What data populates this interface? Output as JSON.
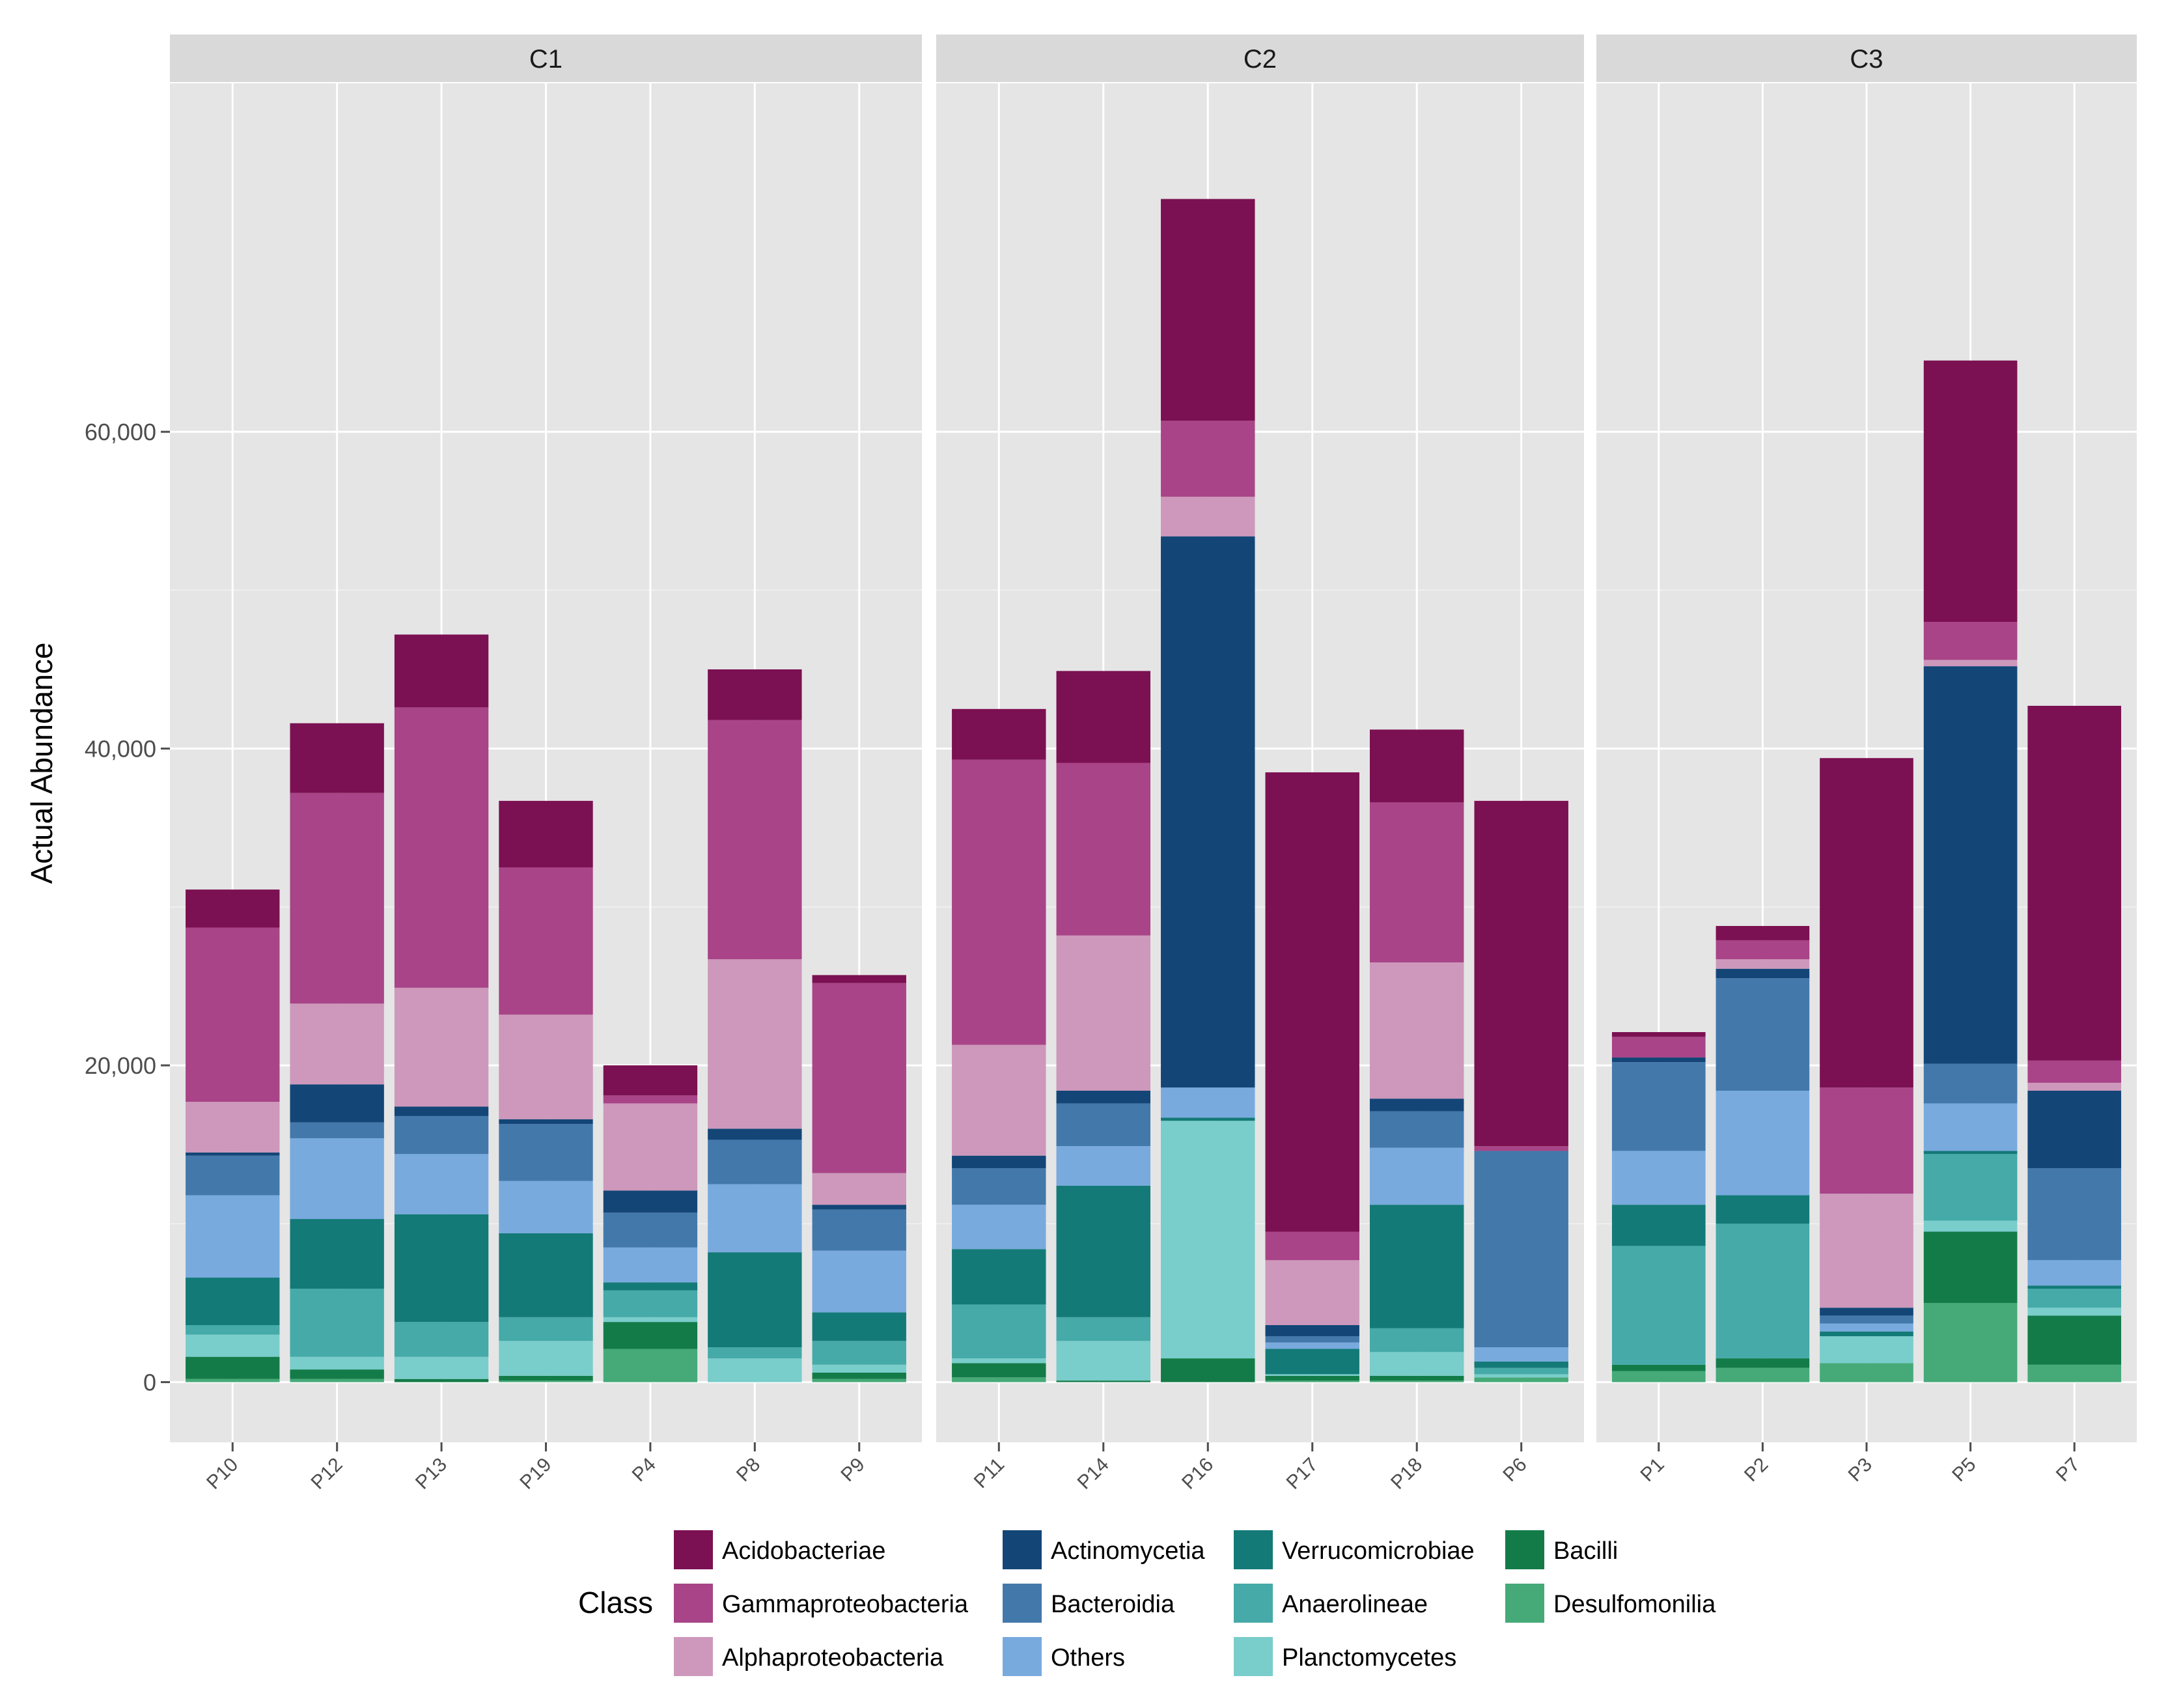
{
  "chart_data": {
    "type": "stacked-bar-faceted",
    "ylabel": "Actual Abundance",
    "xlabel": "",
    "ylim": [
      -3800,
      82000
    ],
    "yticks": [
      0,
      20000,
      40000,
      60000
    ],
    "ytick_labels": [
      "0",
      "20,000",
      "40,000",
      "60,000"
    ],
    "legend_title": "Class",
    "classes": [
      "Acidobacteriae",
      "Gammaproteobacteria",
      "Alphaproteobacteria",
      "Actinomycetia",
      "Bacteroidia",
      "Others",
      "Verrucomicrobiae",
      "Anaerolineae",
      "Planctomycetes",
      "Bacilli",
      "Desulfomonilia"
    ],
    "class_colors": [
      "#7b1052",
      "#a84487",
      "#cd98bb",
      "#134677",
      "#4378ab",
      "#78aade",
      "#137a77",
      "#45aaa8",
      "#79cdcb",
      "#137b48",
      "#45aa78"
    ],
    "stack_order_bottom_to_top": [
      "Desulfomonilia",
      "Bacilli",
      "Planctomycetes",
      "Anaerolineae",
      "Verrucomicrobiae",
      "Others",
      "Bacteroidia",
      "Actinomycetia",
      "Alphaproteobacteria",
      "Gammaproteobacteria",
      "Acidobacteriae"
    ],
    "facets": [
      {
        "name": "C1",
        "samples": [
          {
            "name": "P10",
            "values": {
              "Desulfomonilia": 200,
              "Bacilli": 1400,
              "Planctomycetes": 1400,
              "Anaerolineae": 600,
              "Verrucomicrobiae": 3000,
              "Others": 5200,
              "Bacteroidia": 2500,
              "Actinomycetia": 200,
              "Alphaproteobacteria": 3200,
              "Gammaproteobacteria": 11000,
              "Acidobacteriae": 2400
            }
          },
          {
            "name": "P12",
            "values": {
              "Desulfomonilia": 200,
              "Bacilli": 600,
              "Planctomycetes": 800,
              "Anaerolineae": 4300,
              "Verrucomicrobiae": 4400,
              "Others": 5100,
              "Bacteroidia": 1000,
              "Actinomycetia": 2400,
              "Alphaproteobacteria": 5100,
              "Gammaproteobacteria": 13300,
              "Acidobacteriae": 4400
            }
          },
          {
            "name": "P13",
            "values": {
              "Desulfomonilia": 0,
              "Bacilli": 200,
              "Planctomycetes": 1400,
              "Anaerolineae": 2200,
              "Verrucomicrobiae": 6800,
              "Others": 3800,
              "Bacteroidia": 2400,
              "Actinomycetia": 600,
              "Alphaproteobacteria": 7500,
              "Gammaproteobacteria": 17700,
              "Acidobacteriae": 4600
            }
          },
          {
            "name": "P19",
            "values": {
              "Desulfomonilia": 100,
              "Bacilli": 300,
              "Planctomycetes": 2200,
              "Anaerolineae": 1500,
              "Verrucomicrobiae": 5300,
              "Others": 3300,
              "Bacteroidia": 3600,
              "Actinomycetia": 300,
              "Alphaproteobacteria": 6600,
              "Gammaproteobacteria": 9300,
              "Acidobacteriae": 4200
            }
          },
          {
            "name": "P4",
            "values": {
              "Desulfomonilia": 2100,
              "Bacilli": 1700,
              "Planctomycetes": 300,
              "Anaerolineae": 1700,
              "Verrucomicrobiae": 500,
              "Others": 2200,
              "Bacteroidia": 2200,
              "Actinomycetia": 1400,
              "Alphaproteobacteria": 5500,
              "Gammaproteobacteria": 500,
              "Acidobacteriae": 1900
            }
          },
          {
            "name": "P8",
            "values": {
              "Desulfomonilia": 0,
              "Bacilli": 0,
              "Planctomycetes": 1500,
              "Anaerolineae": 700,
              "Verrucomicrobiae": 6000,
              "Others": 4300,
              "Bacteroidia": 2800,
              "Actinomycetia": 700,
              "Alphaproteobacteria": 10700,
              "Gammaproteobacteria": 15100,
              "Acidobacteriae": 3200
            }
          },
          {
            "name": "P9",
            "values": {
              "Desulfomonilia": 200,
              "Bacilli": 400,
              "Planctomycetes": 500,
              "Anaerolineae": 1500,
              "Verrucomicrobiae": 1800,
              "Others": 3900,
              "Bacteroidia": 2600,
              "Actinomycetia": 300,
              "Alphaproteobacteria": 2000,
              "Gammaproteobacteria": 12000,
              "Acidobacteriae": 500
            }
          }
        ]
      },
      {
        "name": "C2",
        "samples": [
          {
            "name": "P11",
            "values": {
              "Desulfomonilia": 300,
              "Bacilli": 900,
              "Planctomycetes": 300,
              "Anaerolineae": 3400,
              "Verrucomicrobiae": 3500,
              "Others": 2800,
              "Bacteroidia": 2300,
              "Actinomycetia": 800,
              "Alphaproteobacteria": 7000,
              "Gammaproteobacteria": 18000,
              "Acidobacteriae": 3200
            }
          },
          {
            "name": "P14",
            "values": {
              "Desulfomonilia": 0,
              "Bacilli": 100,
              "Planctomycetes": 2500,
              "Anaerolineae": 1500,
              "Verrucomicrobiae": 8300,
              "Others": 2500,
              "Bacteroidia": 2700,
              "Actinomycetia": 800,
              "Alphaproteobacteria": 9800,
              "Gammaproteobacteria": 10900,
              "Acidobacteriae": 5800
            }
          },
          {
            "name": "P16",
            "values": {
              "Desulfomonilia": 0,
              "Bacilli": 1500,
              "Planctomycetes": 15000,
              "Anaerolineae": 0,
              "Verrucomicrobiae": 200,
              "Others": 1900,
              "Bacteroidia": 0,
              "Actinomycetia": 34800,
              "Alphaproteobacteria": 2500,
              "Gammaproteobacteria": 4800,
              "Acidobacteriae": 14000
            }
          },
          {
            "name": "P17",
            "values": {
              "Desulfomonilia": 100,
              "Bacilli": 300,
              "Planctomycetes": 100,
              "Anaerolineae": 0,
              "Verrucomicrobiae": 1600,
              "Others": 400,
              "Bacteroidia": 400,
              "Actinomycetia": 700,
              "Alphaproteobacteria": 4100,
              "Gammaproteobacteria": 1800,
              "Acidobacteriae": 29000
            }
          },
          {
            "name": "P18",
            "values": {
              "Desulfomonilia": 100,
              "Bacilli": 300,
              "Planctomycetes": 1500,
              "Anaerolineae": 1500,
              "Verrucomicrobiae": 7800,
              "Others": 3600,
              "Bacteroidia": 2300,
              "Actinomycetia": 800,
              "Alphaproteobacteria": 8600,
              "Gammaproteobacteria": 10100,
              "Acidobacteriae": 4600
            }
          },
          {
            "name": "P6",
            "values": {
              "Desulfomonilia": 300,
              "Bacilli": 0,
              "Planctomycetes": 200,
              "Anaerolineae": 400,
              "Verrucomicrobiae": 400,
              "Others": 900,
              "Bacteroidia": 12400,
              "Actinomycetia": 0,
              "Alphaproteobacteria": 0,
              "Gammaproteobacteria": 300,
              "Acidobacteriae": 21800
            }
          }
        ]
      },
      {
        "name": "C3",
        "samples": [
          {
            "name": "P1",
            "values": {
              "Desulfomonilia": 700,
              "Bacilli": 400,
              "Planctomycetes": 0,
              "Anaerolineae": 7500,
              "Verrucomicrobiae": 2600,
              "Others": 3400,
              "Bacteroidia": 5600,
              "Actinomycetia": 300,
              "Alphaproteobacteria": 0,
              "Gammaproteobacteria": 1300,
              "Acidobacteriae": 300
            }
          },
          {
            "name": "P2",
            "values": {
              "Desulfomonilia": 900,
              "Bacilli": 600,
              "Planctomycetes": 0,
              "Anaerolineae": 8500,
              "Verrucomicrobiae": 1800,
              "Others": 6600,
              "Bacteroidia": 7100,
              "Actinomycetia": 600,
              "Alphaproteobacteria": 600,
              "Gammaproteobacteria": 1200,
              "Acidobacteriae": 900
            }
          },
          {
            "name": "P3",
            "values": {
              "Desulfomonilia": 1200,
              "Bacilli": 0,
              "Planctomycetes": 1700,
              "Anaerolineae": 0,
              "Verrucomicrobiae": 300,
              "Others": 500,
              "Bacteroidia": 500,
              "Actinomycetia": 500,
              "Alphaproteobacteria": 7200,
              "Gammaproteobacteria": 6700,
              "Acidobacteriae": 20800
            }
          },
          {
            "name": "P5",
            "values": {
              "Desulfomonilia": 5000,
              "Bacilli": 4500,
              "Planctomycetes": 700,
              "Anaerolineae": 4200,
              "Verrucomicrobiae": 200,
              "Others": 3000,
              "Bacteroidia": 2500,
              "Actinomycetia": 25100,
              "Alphaproteobacteria": 400,
              "Gammaproteobacteria": 2400,
              "Acidobacteriae": 16500
            }
          },
          {
            "name": "P7",
            "values": {
              "Desulfomonilia": 1100,
              "Bacilli": 3100,
              "Planctomycetes": 500,
              "Anaerolineae": 1200,
              "Verrucomicrobiae": 200,
              "Others": 1600,
              "Bacteroidia": 5800,
              "Actinomycetia": 4900,
              "Alphaproteobacteria": 500,
              "Gammaproteobacteria": 1400,
              "Acidobacteriae": 22400
            }
          }
        ]
      }
    ]
  }
}
